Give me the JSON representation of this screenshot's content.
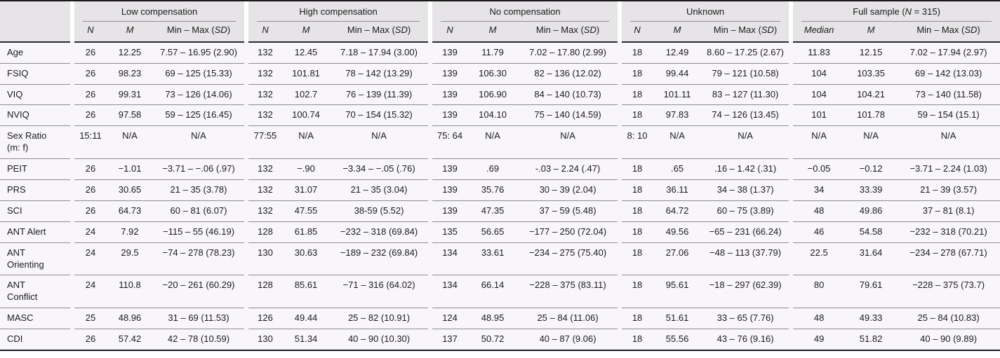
{
  "table": {
    "header": {
      "stub_label": "",
      "groups": [
        "Low compensation",
        "High compensation",
        "No compensation",
        "Unknown"
      ],
      "full_sample": {
        "pre": "Full sample (",
        "n": "N",
        "post": " = 315)"
      },
      "sub": {
        "n": "N",
        "m": "M",
        "median": "Median",
        "minmax_pre": "Min – Max (",
        "sd": "SD",
        "close": ")"
      }
    },
    "rows": [
      {
        "label": "Age",
        "cells": [
          "26",
          "12.25",
          "7.57 – 16.95 (2.90)",
          "132",
          "12.45",
          "7.18 – 17.94 (3.00)",
          "139",
          "11.79",
          "7.02 – 17.80 (2.99)",
          "18",
          "12.49",
          "8.60 – 17.25 (2.67)",
          "11.83",
          "12.15",
          "7.02 – 17.94 (2.97)"
        ]
      },
      {
        "label": "FSIQ",
        "cells": [
          "26",
          "98.23",
          "69 – 125 (15.33)",
          "132",
          "101.81",
          "78 – 142 (13.29)",
          "139",
          "106.30",
          "82 – 136 (12.02)",
          "18",
          "99.44",
          "79 – 121 (10.58)",
          "104",
          "103.35",
          "69 – 142 (13.03)"
        ]
      },
      {
        "label": "VIQ",
        "cells": [
          "26",
          "99.31",
          "73 – 126 (14.06)",
          "132",
          "102.7",
          "76 – 139 (11.39)",
          "139",
          "106.90",
          "84 – 140 (10.73)",
          "18",
          "101.11",
          "83 – 127 (11.30)",
          "104",
          "104.21",
          "73 – 140 (11.58)"
        ]
      },
      {
        "label": "NVIQ",
        "cells": [
          "26",
          "97.58",
          "59 – 125 (16.45)",
          "132",
          "100.74",
          "70 – 154 (15.32)",
          "139",
          "104.10",
          "75 – 140 (14.59)",
          "18",
          "97.83",
          "74 – 126 (13.45)",
          "101",
          "101.78",
          "59 – 154 (15.1)"
        ]
      },
      {
        "label": "Sex Ratio (m: f)",
        "cells": [
          "15:11",
          "N/A",
          "N/A",
          "77:55",
          "N/A",
          "N/A",
          "75: 64",
          "N/A",
          "N/A",
          "8: 10",
          "N/A",
          "N/A",
          "N/A",
          "N/A",
          "N/A"
        ]
      },
      {
        "label": "PEIT",
        "cells": [
          "26",
          "−1.01",
          "−3.71 – −.06 (.97)",
          "132",
          "−.90",
          "−3.34 – −.05 (.76)",
          "139",
          ".69",
          "-.03 – 2.24 (.47)",
          "18",
          ".65",
          ".16 – 1.42 (.31)",
          "−0.05",
          "−0.12",
          "−3.71 – 2.24 (1.03)"
        ]
      },
      {
        "label": "PRS",
        "cells": [
          "26",
          "30.65",
          "21 – 35 (3.78)",
          "132",
          "31.07",
          "21 – 35 (3.04)",
          "139",
          "35.76",
          "30 – 39 (2.04)",
          "18",
          "36.11",
          "34 – 38 (1.37)",
          "34",
          "33.39",
          "21 – 39 (3.57)"
        ]
      },
      {
        "label": "SCI",
        "cells": [
          "26",
          "64.73",
          "60 – 81 (6.07)",
          "132",
          "47.55",
          "38-59 (5.52)",
          "139",
          "47.35",
          "37 – 59 (5.48)",
          "18",
          "64.72",
          "60 – 75 (3.89)",
          "48",
          "49.86",
          "37 – 81 (8.1)"
        ]
      },
      {
        "label": "ANT Alert",
        "cells": [
          "24",
          "7.92",
          "−115 – 55 (46.19)",
          "128",
          "61.85",
          "−232 – 318 (69.84)",
          "135",
          "56.65",
          "−177 – 250 (72.04)",
          "18",
          "49.56",
          "−65 – 231 (66.24)",
          "46",
          "54.58",
          "−232 – 318 (70.21)"
        ]
      },
      {
        "label": "ANT Orienting",
        "cells": [
          "24",
          "29.5",
          "−74 – 278 (78.23)",
          "130",
          "30.63",
          "−189 – 232 (69.84)",
          "134",
          "33.61",
          "−234 – 275 (75.40)",
          "18",
          "27.06",
          "−48 – 113 (37.79)",
          "22.5",
          "31.64",
          "−234 – 278 (67.71)"
        ]
      },
      {
        "label": "ANT Conflict",
        "cells": [
          "24",
          "110.8",
          "−20 – 261 (60.29)",
          "128",
          "85.61",
          "−71 – 316 (64.02)",
          "134",
          "66.14",
          "−228 – 375 (83.11)",
          "18",
          "95.61",
          "−18 – 297 (62.39)",
          "80",
          "79.61",
          "−228 – 375 (73.7)"
        ]
      },
      {
        "label": "MASC",
        "cells": [
          "25",
          "48.96",
          "31 – 69 (11.53)",
          "126",
          "49.44",
          "25 – 82 (10.91)",
          "124",
          "48.95",
          "25 – 84 (11.06)",
          "18",
          "51.61",
          "33 – 65 (7.76)",
          "48",
          "49.33",
          "25 – 84 (10.83)"
        ]
      },
      {
        "label": "CDI",
        "cells": [
          "26",
          "57.42",
          "42 – 78 (10.59)",
          "130",
          "51.34",
          "40 – 90 (10.30)",
          "137",
          "50.72",
          "40 – 87 (9.06)",
          "18",
          "55.56",
          "43 – 76 (9.16)",
          "49",
          "51.82",
          "40 – 90 (9.89)"
        ]
      }
    ]
  }
}
